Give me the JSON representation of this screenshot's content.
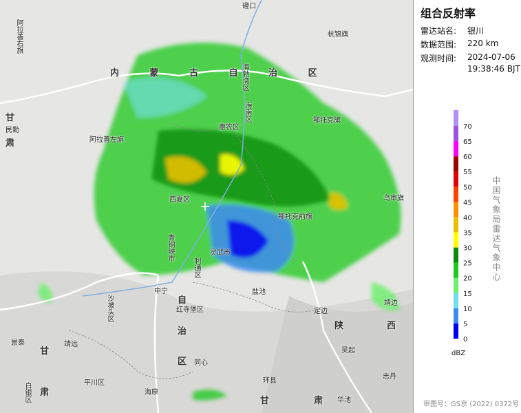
{
  "panel": {
    "title": "组合反射率",
    "station_label": "雷达站名:",
    "station": "银川",
    "range_label": "数据范围:",
    "range": "220 km",
    "time_label": "观测时间:",
    "date": "2024-07-06",
    "time": "19:38:46 BJT"
  },
  "legend": {
    "unit": "dBZ",
    "ticks": [
      0,
      5,
      10,
      15,
      20,
      25,
      30,
      35,
      40,
      45,
      50,
      55,
      60,
      65,
      70
    ],
    "colors": [
      "#0000f0",
      "#3c8cf0",
      "#6ee0f0",
      "#6cf06c",
      "#1ec81e",
      "#0a8c0a",
      "#ffff00",
      "#e6c000",
      "#ff9000",
      "#ff4000",
      "#e00000",
      "#a00000",
      "#ff00ff",
      "#a050e0",
      "#b090f0"
    ]
  },
  "org": "中国气象局雷达气象中心",
  "approval": "审图号：GS京 (2022) 0372号",
  "map_labels": [
    "磴口",
    "阿拉善右旗",
    "杭锦旗",
    "内 蒙 古 自 治 区",
    "海勃湾区",
    "海南区",
    "甘",
    "民勤",
    "肃",
    "惠农区",
    "鄂托克旗",
    "阿拉善左旗",
    "西夏区",
    "鄂托克前旗",
    "乌审旗",
    "灵武市",
    "青铜峡市",
    "利通区",
    "中宁",
    "沙坡头区",
    "自",
    "治",
    "区",
    "红寺堡区",
    "盐池",
    "定边",
    "靖边",
    "陕",
    "西",
    "吴起",
    "志丹",
    "景泰",
    "靖远",
    "甘",
    "肃",
    "白银区",
    "平川区",
    "海原",
    "同心",
    "环县",
    "甘",
    "肃",
    "华池"
  ]
}
